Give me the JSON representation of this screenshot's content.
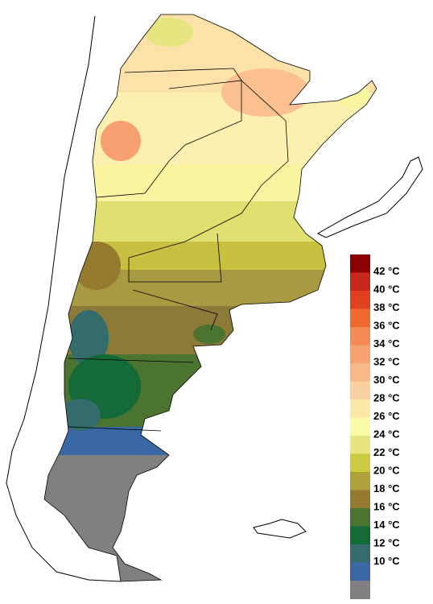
{
  "legend": {
    "items": [
      {
        "color": "#8b0000"
      },
      {
        "label": "42 °C",
        "color": "#c8281c"
      },
      {
        "label": "40 °C",
        "color": "#e0401e"
      },
      {
        "label": "38 °C",
        "color": "#f06a30"
      },
      {
        "label": "36 °C",
        "color": "#f58a55"
      },
      {
        "label": "34 °C",
        "color": "#f7a070"
      },
      {
        "label": "32 °C",
        "color": "#f8b888"
      },
      {
        "label": "30 °C",
        "color": "#fad0a0"
      },
      {
        "label": "28 °C",
        "color": "#fce8a8"
      },
      {
        "label": "26 °C",
        "color": "#fbfaa8"
      },
      {
        "label": "24 °C",
        "color": "#e6e680"
      },
      {
        "label": "22 °C",
        "color": "#cccc40"
      },
      {
        "label": "20 °C",
        "color": "#b0a038"
      },
      {
        "label": "18 °C",
        "color": "#957a30"
      },
      {
        "label": "16 °C",
        "color": "#4a7430"
      },
      {
        "label": "14 °C",
        "color": "#126a36"
      },
      {
        "label": "12 °C",
        "color": "#336c6a"
      },
      {
        "label": "10 °C",
        "color": "#3a68a4"
      },
      {
        "color": "#808080"
      }
    ]
  }
}
